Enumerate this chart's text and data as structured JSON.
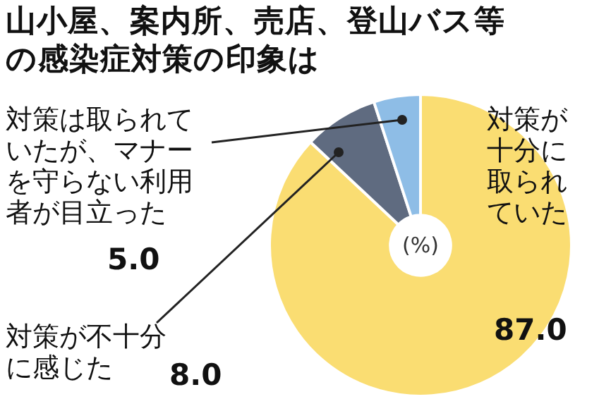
{
  "chart_data": {
    "type": "donut",
    "title": "山小屋、案内所、売店、登山バス等の感染症対策の印象は",
    "categories": [
      "対策が十分に取られていた",
      "対策が不十分に感じた",
      "対策は取られていたが、マナーを守らない利用者が目立った"
    ],
    "values": [
      87.0,
      8.0,
      5.0
    ],
    "value_labels": [
      "87.0",
      "8.0",
      "5.0"
    ],
    "colors": [
      "#fadd72",
      "#5f6b80",
      "#8ebde6"
    ],
    "annotations": [
      "(%)"
    ],
    "legend": false
  }
}
